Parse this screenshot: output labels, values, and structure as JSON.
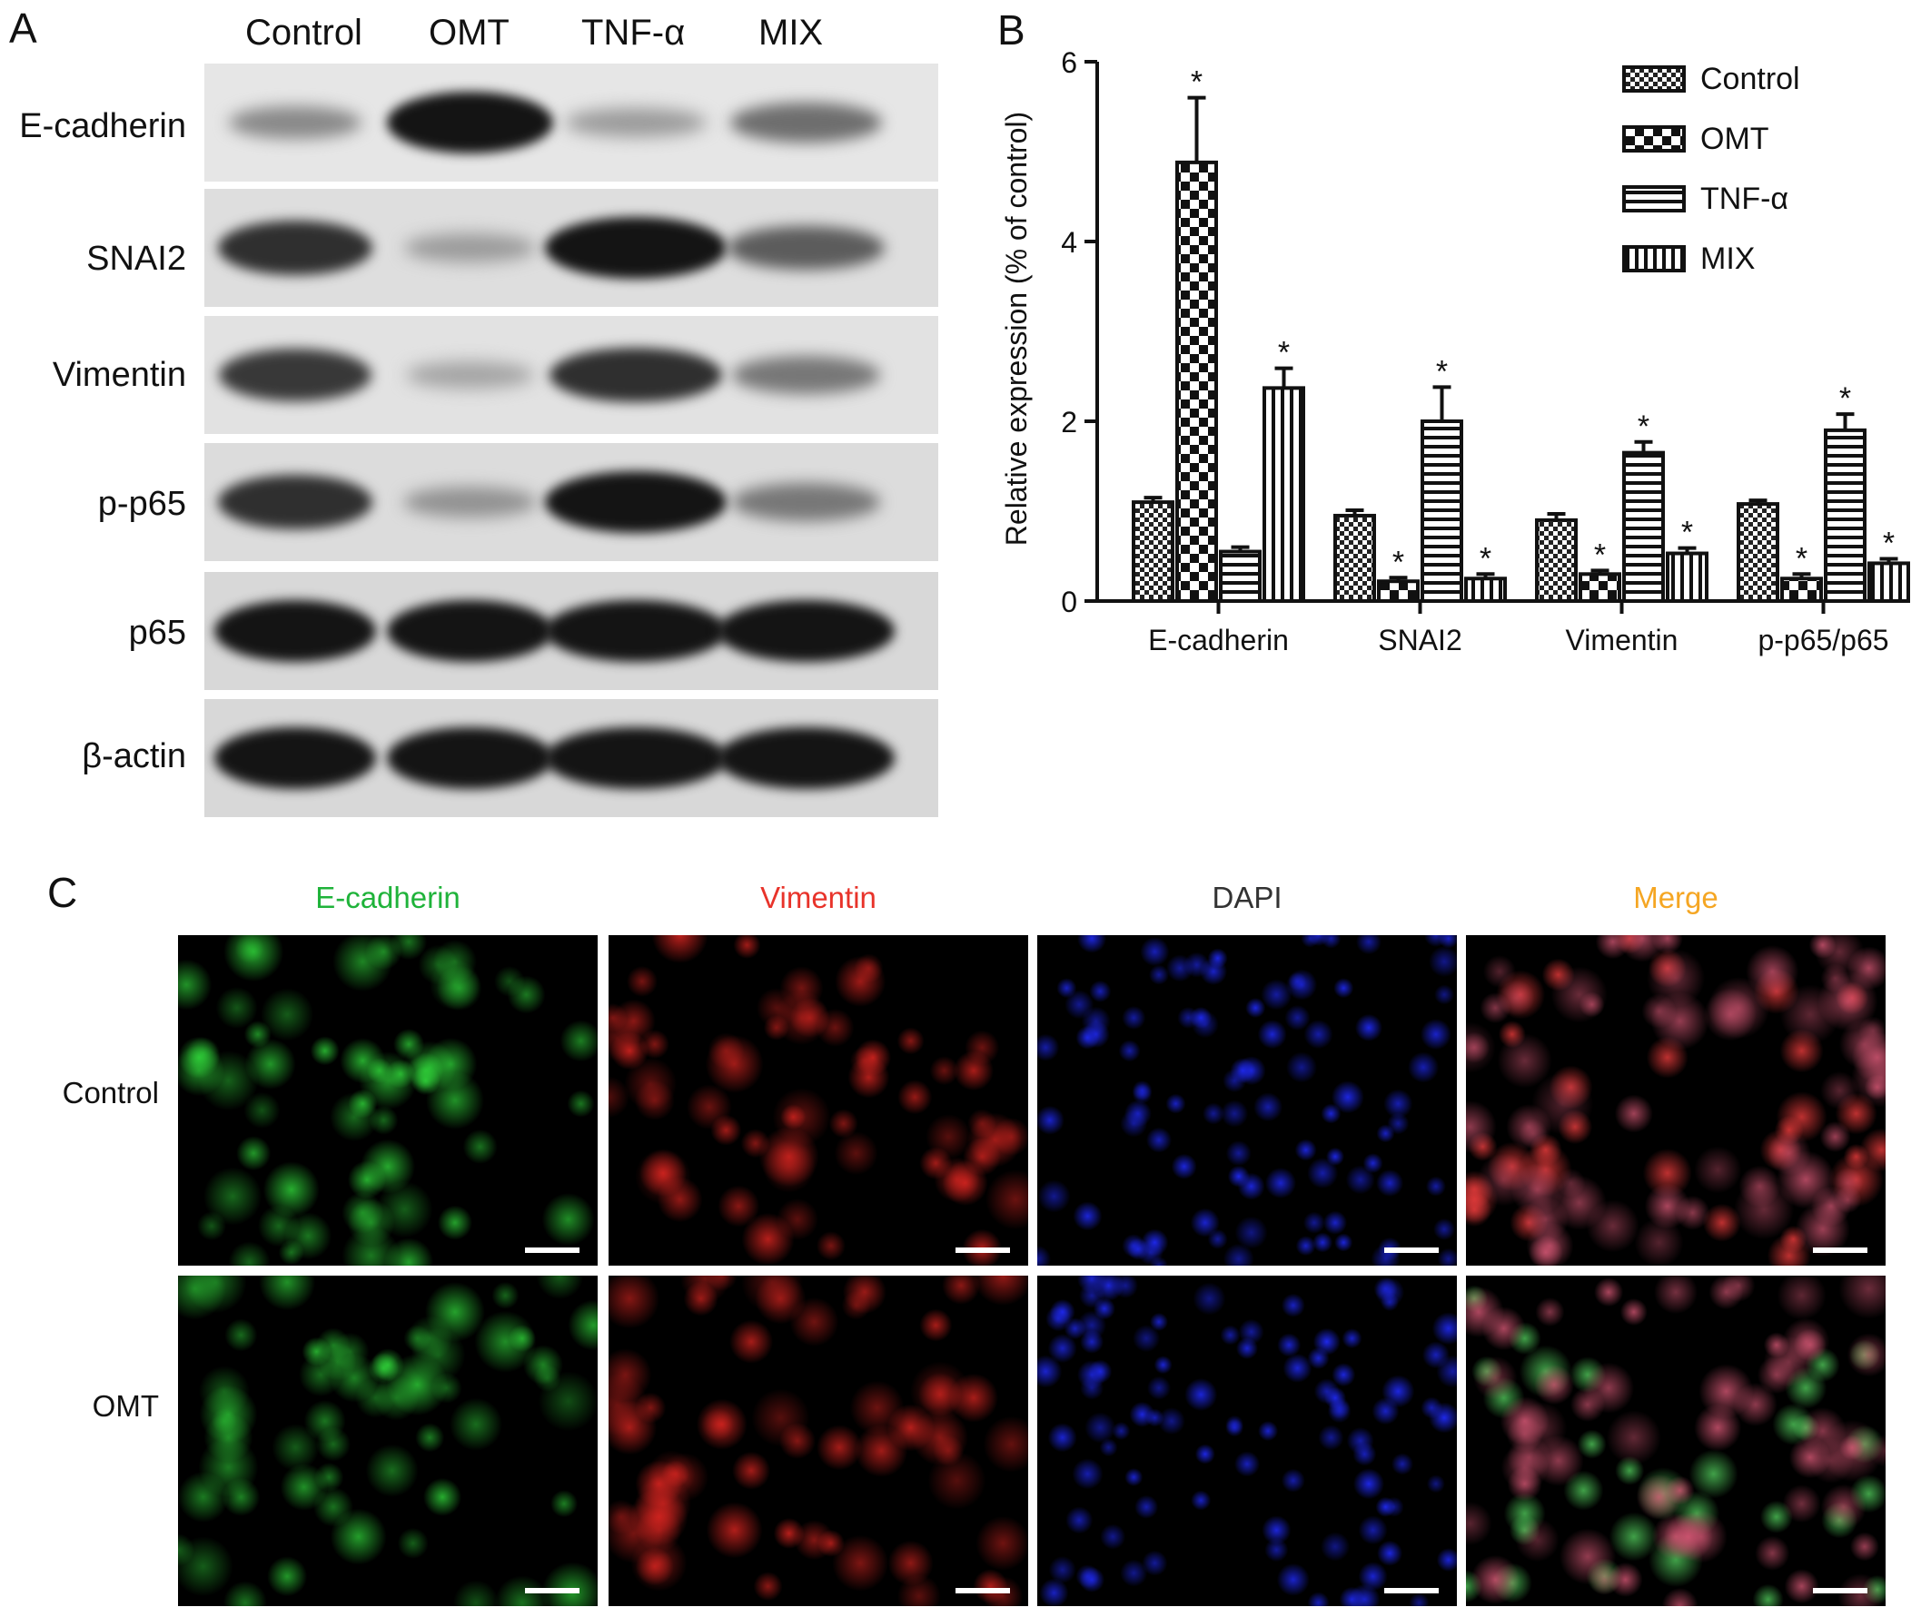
{
  "panels": {
    "a": "A",
    "b": "B",
    "c": "C"
  },
  "western": {
    "lanes": [
      "Control",
      "OMT",
      "TNF-α",
      "MIX"
    ],
    "rows": [
      {
        "label": "E-cadherin",
        "intensity": [
          0.35,
          1.0,
          0.25,
          0.5
        ]
      },
      {
        "label": "SNAI2",
        "intensity": [
          0.85,
          0.25,
          1.0,
          0.6
        ]
      },
      {
        "label": "Vimentin",
        "intensity": [
          0.8,
          0.2,
          0.85,
          0.45
        ]
      },
      {
        "label": "p-p65",
        "intensity": [
          0.85,
          0.3,
          1.0,
          0.45
        ]
      },
      {
        "label": "p65",
        "intensity": [
          1.0,
          1.0,
          1.0,
          1.0
        ]
      },
      {
        "label": "β-actin",
        "intensity": [
          1.0,
          1.0,
          1.0,
          1.0
        ]
      }
    ]
  },
  "chart_data": {
    "type": "bar",
    "ylabel": "Relative expression (% of control)",
    "ylim": [
      0,
      6
    ],
    "yticks": [
      "0",
      "2",
      "4",
      "6"
    ],
    "categories": [
      "E-cadherin",
      "SNAI2",
      "Vimentin",
      "p-p65/p65"
    ],
    "series": [
      {
        "name": "Control",
        "pattern": "checker-small",
        "values": [
          1.1,
          0.95,
          0.9,
          1.08
        ],
        "errors": [
          0.05,
          0.06,
          0.07,
          0.04
        ],
        "significant": [
          false,
          false,
          false,
          false
        ]
      },
      {
        "name": "OMT",
        "pattern": "checker-large",
        "values": [
          4.88,
          0.22,
          0.3,
          0.25
        ],
        "errors": [
          0.72,
          0.04,
          0.04,
          0.05
        ],
        "significant": [
          true,
          true,
          true,
          true
        ]
      },
      {
        "name": "TNF-α",
        "pattern": "horizontal-lines",
        "values": [
          0.55,
          2.0,
          1.65,
          1.9
        ],
        "errors": [
          0.05,
          0.38,
          0.12,
          0.18
        ],
        "significant": [
          false,
          true,
          true,
          true
        ]
      },
      {
        "name": "MIX",
        "pattern": "vertical-lines",
        "values": [
          2.37,
          0.25,
          0.53,
          0.42
        ],
        "errors": [
          0.22,
          0.05,
          0.06,
          0.05
        ],
        "significant": [
          true,
          true,
          true,
          true
        ]
      }
    ],
    "significance_marker": "*",
    "legend_position": "top-right"
  },
  "if_panel": {
    "columns": [
      {
        "label": "E-cadherin",
        "color": "#1fb33a",
        "cell_rgb": "50,220,60"
      },
      {
        "label": "Vimentin",
        "color": "#e8332a",
        "cell_rgb": "235,40,35"
      },
      {
        "label": "DAPI",
        "color": "#333333",
        "cell_rgb": "30,40,235"
      },
      {
        "label": "Merge",
        "color": "#f5a623",
        "cell_rgb": "220,90,120"
      }
    ],
    "rows": [
      "Control",
      "OMT"
    ]
  }
}
